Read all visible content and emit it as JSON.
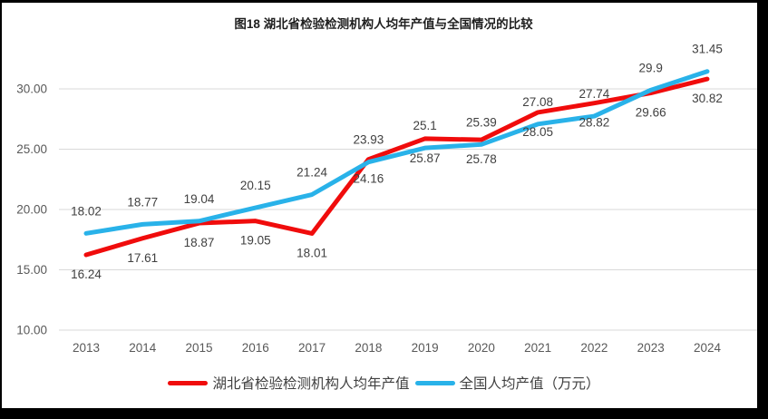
{
  "chart_data": {
    "type": "line",
    "title": "图18 湖北省检验检测机构人均年产值与全国情况的比较",
    "categories": [
      "2013",
      "2014",
      "2015",
      "2016",
      "2017",
      "2018",
      "2019",
      "2020",
      "2021",
      "2022",
      "2023",
      "2024"
    ],
    "series": [
      {
        "name": "湖北省检验检测机构人均年产值",
        "color": "#f00c0c",
        "label_position": "below",
        "values": [
          16.24,
          17.61,
          18.87,
          19.05,
          18.01,
          24.16,
          25.87,
          25.78,
          28.05,
          28.82,
          29.66,
          30.82
        ]
      },
      {
        "name": "全国人均产值（万元）",
        "color": "#29b2e9",
        "label_position": "above",
        "values": [
          18.02,
          18.77,
          19.04,
          20.15,
          21.24,
          23.93,
          25.1,
          25.39,
          27.08,
          27.74,
          29.9,
          31.45
        ]
      }
    ],
    "yticks": [
      "10.00",
      "15.00",
      "20.00",
      "25.00",
      "30.00"
    ],
    "ylim": [
      10,
      32.5
    ],
    "xlabel": "",
    "ylabel": "",
    "grid": true,
    "legend_position": "bottom",
    "colors": {
      "grid": "#d9d9d9",
      "tick_text": "#595959",
      "data_label_text": "#404040",
      "frame_border": "#000000"
    }
  }
}
